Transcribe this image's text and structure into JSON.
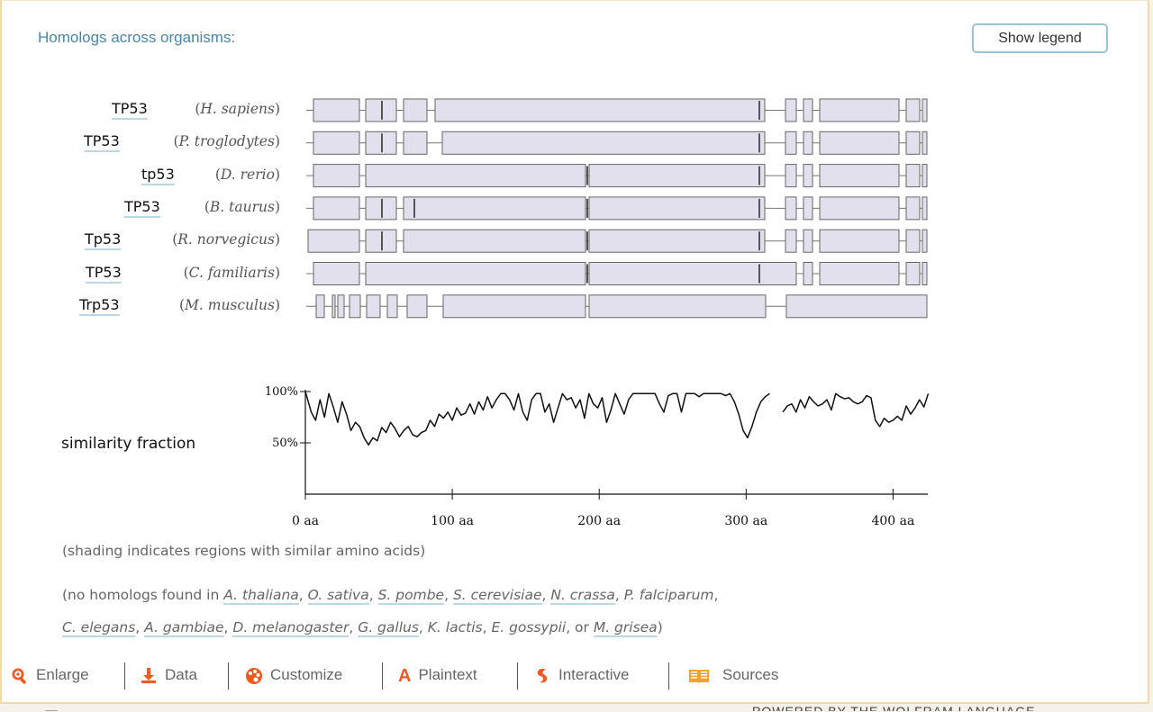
{
  "pod": {
    "title": "Homologs across organisms:",
    "legend_button": "Show legend"
  },
  "homologs": [
    {
      "gene": "TP53",
      "organism": "H. sapiens"
    },
    {
      "gene": "TP53",
      "organism": "P. troglodytes"
    },
    {
      "gene": "tp53",
      "organism": "D. rerio"
    },
    {
      "gene": "TP53",
      "organism": "B. taurus"
    },
    {
      "gene": "Tp53",
      "organism": "R. norvegicus"
    },
    {
      "gene": "TP53",
      "organism": "C. familiaris"
    },
    {
      "gene": "Trp53",
      "organism": "M. musculus"
    }
  ],
  "chart_data": {
    "type": "line",
    "ylabel": "similarity fraction",
    "y_ticks": [
      "100%",
      "50%"
    ],
    "x_ticks": [
      "0 aa",
      "100 aa",
      "200 aa",
      "300 aa",
      "400 aa"
    ],
    "xlim": [
      0,
      425
    ],
    "ylim": [
      0,
      100
    ],
    "series": [
      {
        "segments": [
          {
            "x": [
              0,
              4,
              7,
              10,
              13,
              16,
              19,
              22,
              25,
              28,
              31,
              34,
              37,
              40,
              43,
              46,
              49,
              52,
              55,
              58,
              61,
              64,
              67,
              70,
              73,
              76,
              79,
              82,
              85,
              88,
              91,
              94,
              97,
              100,
              103,
              106,
              109,
              112,
              115,
              118,
              121,
              124,
              127,
              130,
              133,
              136,
              139,
              142,
              145,
              148,
              151,
              154,
              157,
              160,
              163,
              166,
              169,
              172,
              175,
              178,
              181,
              184,
              187,
              190,
              193,
              196,
              199,
              202,
              205,
              208,
              211,
              214,
              217,
              220,
              223,
              226,
              229,
              232,
              235,
              238,
              241,
              244,
              247,
              250,
              253,
              256,
              259,
              262,
              265,
              268,
              271,
              274,
              277,
              280,
              283,
              286,
              289,
              292,
              295,
              298,
              301,
              304,
              307,
              310,
              313,
              316
            ],
            "y": [
              100,
              80,
              72,
              92,
              75,
              98,
              85,
              70,
              90,
              78,
              62,
              70,
              66,
              55,
              48,
              55,
              52,
              65,
              60,
              70,
              64,
              56,
              62,
              66,
              58,
              56,
              60,
              62,
              72,
              66,
              78,
              74,
              80,
              72,
              84,
              77,
              79,
              88,
              78,
              90,
              82,
              95,
              84,
              92,
              98,
              98,
              92,
              82,
              98,
              80,
              72,
              92,
              98,
              98,
              80,
              88,
              70,
              84,
              98,
              92,
              94,
              84,
              92,
              74,
              98,
              88,
              84,
              94,
              70,
              82,
              98,
              88,
              78,
              92,
              98,
              98,
              98,
              98,
              98,
              98,
              88,
              80,
              96,
              98,
              98,
              80,
              98,
              98,
              98,
              95,
              98,
              98,
              98,
              98,
              98,
              96,
              98,
              90,
              78,
              62,
              55,
              66,
              80,
              90,
              95,
              98
            ]
          },
          {
            "x": [
              325,
              328,
              331,
              334,
              337,
              340,
              343,
              346,
              349,
              352,
              355,
              358,
              361,
              364,
              367,
              370,
              373,
              376,
              379,
              382,
              385,
              388,
              391,
              394,
              397,
              400,
              403,
              406,
              409,
              412,
              415,
              418,
              421,
              424
            ],
            "y": [
              80,
              86,
              88,
              80,
              92,
              84,
              95,
              90,
              86,
              88,
              92,
              82,
              98,
              95,
              93,
              94,
              90,
              88,
              90,
              96,
              94,
              72,
              66,
              74,
              70,
              72,
              76,
              72,
              86,
              78,
              84,
              92,
              85,
              98
            ]
          }
        ]
      }
    ]
  },
  "notes": {
    "shading": "(shading indicates regions with similar amino acids)",
    "no_homologs_prefix": "(no homologs found in ",
    "no_homologs_line1": [
      {
        "text": "A. thaliana",
        "link": true
      },
      {
        "text": ", ",
        "link": false
      },
      {
        "text": "O. sativa",
        "link": true
      },
      {
        "text": ", ",
        "link": false
      },
      {
        "text": "S. pombe",
        "link": true
      },
      {
        "text": ", ",
        "link": false
      },
      {
        "text": "S. cerevisiae",
        "link": true
      },
      {
        "text": ", ",
        "link": false
      },
      {
        "text": "N. crassa",
        "link": true
      },
      {
        "text": ", ",
        "link": false
      },
      {
        "text": "P. falciparum",
        "link": false,
        "italic": true
      },
      {
        "text": ",",
        "link": false
      }
    ],
    "no_homologs_line2": [
      {
        "text": "C. elegans",
        "link": true
      },
      {
        "text": ", ",
        "link": false
      },
      {
        "text": "A. gambiae",
        "link": true
      },
      {
        "text": ", ",
        "link": false
      },
      {
        "text": "D. melanogaster",
        "link": true
      },
      {
        "text": ", ",
        "link": false
      },
      {
        "text": "G. gallus",
        "link": true
      },
      {
        "text": ", ",
        "link": false
      },
      {
        "text": "K. lactis",
        "link": false,
        "italic": true
      },
      {
        "text": ", ",
        "link": false
      },
      {
        "text": "E. gossypii",
        "link": false,
        "italic": true
      },
      {
        "text": ", or ",
        "link": false
      },
      {
        "text": "M. grisea",
        "link": true
      },
      {
        "text": ")",
        "link": false
      }
    ]
  },
  "toolbar": {
    "enlarge": "Enlarge",
    "data": "Data",
    "customize": "Customize",
    "plaintext": "Plaintext",
    "interactive": "Interactive",
    "sources": "Sources"
  },
  "footer": {
    "right_text": "POWERED BY THE WOLFRAM LANGUAGE"
  },
  "colors": {
    "accent": "#4a86a8",
    "icon_orange": "#f05a22",
    "exon_fill": "#e3e0ee",
    "exon_stroke": "#666666"
  }
}
